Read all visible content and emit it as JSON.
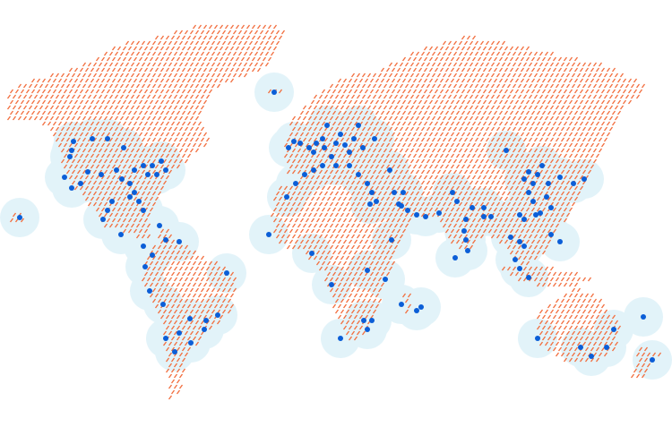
{
  "map": {
    "style": "dotted world map with location markers",
    "colors": {
      "background": "#ffffff",
      "land_dash": "#f26d3d",
      "marker": "#0b5ed7",
      "marker_halo": "#e2f3f9"
    },
    "icons": {
      "marker": "location-dot-icon",
      "halo": "coverage-halo"
    }
  }
}
